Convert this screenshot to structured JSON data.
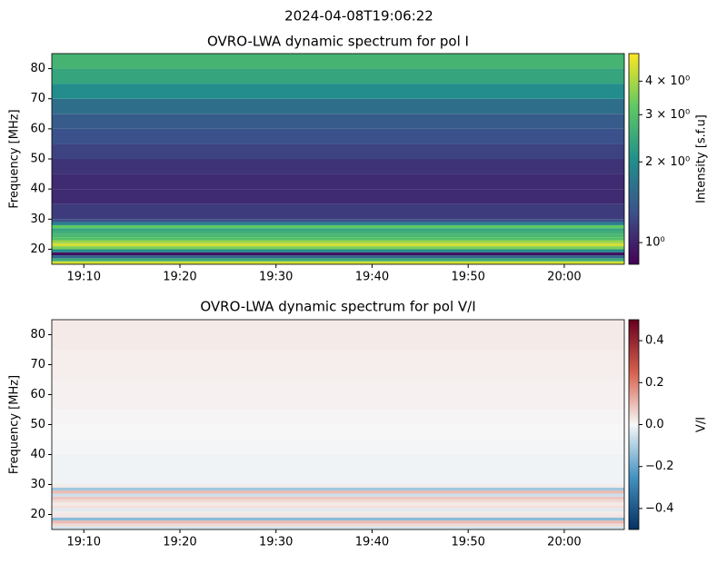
{
  "title": "2024-04-08T19:06:22",
  "chart_data": [
    {
      "type": "heatmap",
      "title": "OVRO-LWA dynamic spectrum for pol I",
      "ylabel": "Frequency [MHz]",
      "xlim": [
        "19:06:40",
        "20:06:15"
      ],
      "xticks": [
        "19:10",
        "19:20",
        "19:30",
        "19:40",
        "19:50",
        "20:00"
      ],
      "ylim": [
        15,
        85
      ],
      "yticks": [
        20,
        30,
        40,
        50,
        60,
        70,
        80
      ],
      "y_bins": [
        15,
        16,
        17,
        18,
        19,
        20,
        21,
        22,
        23,
        24,
        25,
        26,
        27,
        28,
        29,
        30,
        35,
        40,
        45,
        50,
        55,
        60,
        65,
        70,
        75,
        80,
        85
      ],
      "values": [
        4.5,
        2.5,
        1.5,
        0.9,
        2.0,
        3.5,
        4.5,
        3.8,
        3.0,
        2.8,
        2.6,
        2.4,
        3.2,
        1.8,
        1.3,
        1.15,
        1.05,
        1.05,
        1.1,
        1.2,
        1.3,
        1.4,
        1.6,
        2.0,
        2.4,
        2.7
      ],
      "colormap": "viridis",
      "colorbar": {
        "label": "Intensity [s.f.u]",
        "scale": "log",
        "lim": [
          0.83,
          5.07
        ],
        "ticks": [
          {
            "value": 1,
            "label": "10⁰"
          },
          {
            "value": 2,
            "label": "2 × 10⁰"
          },
          {
            "value": 3,
            "label": "3 × 10⁰"
          },
          {
            "value": 4,
            "label": "4 × 10⁰"
          }
        ]
      }
    },
    {
      "type": "heatmap",
      "title": "OVRO-LWA dynamic spectrum for pol V/I",
      "ylabel": "Frequency [MHz]",
      "xlim": [
        "19:06:40",
        "20:06:15"
      ],
      "xticks": [
        "19:10",
        "19:20",
        "19:30",
        "19:40",
        "19:50",
        "20:00"
      ],
      "ylim": [
        15,
        85
      ],
      "yticks": [
        20,
        30,
        40,
        50,
        60,
        70,
        80
      ],
      "y_bins": [
        15,
        16,
        17,
        18,
        19,
        20,
        21,
        22,
        23,
        24,
        25,
        26,
        27,
        28,
        29,
        30,
        35,
        40,
        45,
        50,
        55,
        60,
        65,
        70,
        75,
        80,
        85
      ],
      "values": [
        -0.05,
        0.05,
        0.1,
        -0.15,
        0.03,
        0.02,
        -0.03,
        0.04,
        0.02,
        0.05,
        0.08,
        -0.06,
        0.1,
        -0.12,
        0.02,
        -0.01,
        -0.01,
        -0.005,
        0.0,
        0.005,
        0.01,
        0.01,
        0.015,
        0.015,
        0.02,
        0.02
      ],
      "colormap": "RdBu_r",
      "colorbar": {
        "label": "V/I",
        "scale": "linear",
        "lim": [
          -0.5,
          0.5
        ],
        "ticks": [
          {
            "value": -0.4,
            "label": "−0.4"
          },
          {
            "value": -0.2,
            "label": "−0.2"
          },
          {
            "value": 0,
            "label": "0.0"
          },
          0.2,
          0.4
        ]
      }
    }
  ]
}
